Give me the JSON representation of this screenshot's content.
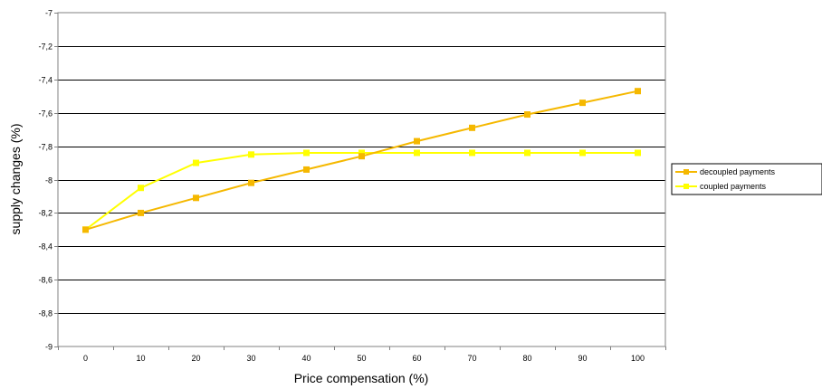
{
  "chart_data": {
    "type": "line",
    "title": "",
    "xlabel": "Price compensation (%)",
    "ylabel": "supply changes (%)",
    "x": [
      0,
      10,
      20,
      30,
      40,
      50,
      60,
      70,
      80,
      90,
      100
    ],
    "x_tick_labels": [
      "0",
      "10",
      "20",
      "30",
      "40",
      "50",
      "60",
      "70",
      "80",
      "90",
      "100"
    ],
    "y_tick_labels": [
      "-7",
      "-7,2",
      "-7,4",
      "-7,6",
      "-7,8",
      "-8",
      "-8,2",
      "-8,4",
      "-8,6",
      "-8,8",
      "-9"
    ],
    "y_ticks": [
      -7,
      -7.2,
      -7.4,
      -7.6,
      -7.8,
      -8,
      -8.2,
      -8.4,
      -8.6,
      -8.8,
      -9
    ],
    "ylim": [
      -9,
      -7
    ],
    "grid": "horizontal",
    "legend_position": "right",
    "series": [
      {
        "name": "decoupled payments",
        "color": "#F5B800",
        "marker": "square",
        "values": [
          -8.3,
          -8.2,
          -8.11,
          -8.02,
          -7.94,
          -7.86,
          -7.77,
          -7.69,
          -7.61,
          -7.54,
          -7.47
        ]
      },
      {
        "name": "coupled payments",
        "color": "#FFFF00",
        "marker": "square",
        "values": [
          -8.3,
          -8.05,
          -7.9,
          -7.85,
          -7.84,
          -7.84,
          -7.84,
          -7.84,
          -7.84,
          -7.84,
          -7.84
        ]
      }
    ]
  }
}
